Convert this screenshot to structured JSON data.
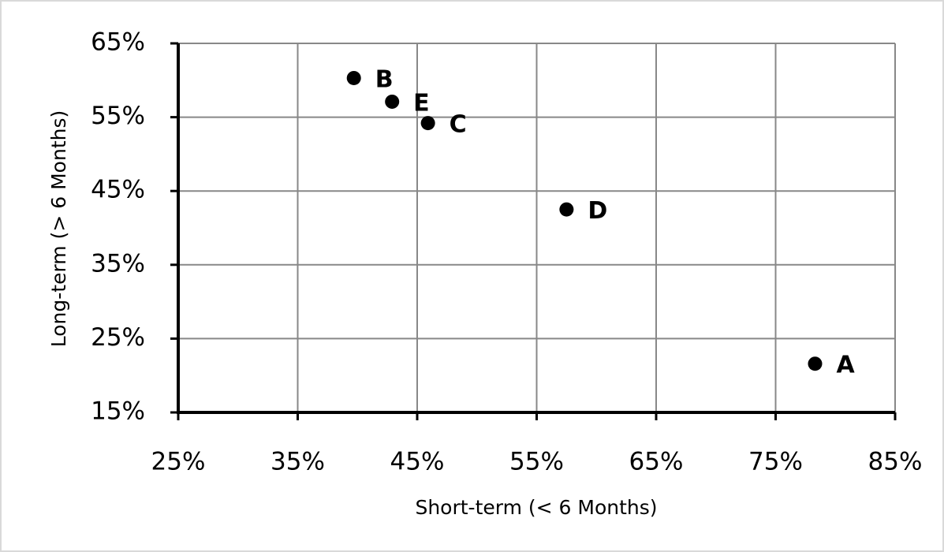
{
  "chart_data": {
    "type": "scatter",
    "xlabel": "Short-term (< 6 Months)",
    "ylabel": "Long-term (> 6 Months)",
    "xlim": [
      25,
      85
    ],
    "ylim": [
      15,
      65
    ],
    "xticks": [
      {
        "value": 25,
        "label": "25%"
      },
      {
        "value": 35,
        "label": "35%"
      },
      {
        "value": 45,
        "label": "45%"
      },
      {
        "value": 55,
        "label": "55%"
      },
      {
        "value": 65,
        "label": "65%"
      },
      {
        "value": 75,
        "label": "75%"
      },
      {
        "value": 85,
        "label": "85%"
      }
    ],
    "yticks": [
      {
        "value": 15,
        "label": "15%"
      },
      {
        "value": 25,
        "label": "25%"
      },
      {
        "value": 35,
        "label": "35%"
      },
      {
        "value": 45,
        "label": "45%"
      },
      {
        "value": 55,
        "label": "55%"
      },
      {
        "value": 65,
        "label": "65%"
      }
    ],
    "grid": true,
    "series": [
      {
        "color": "#000000",
        "labels": [
          "B",
          "E",
          "C",
          "D",
          "A"
        ],
        "x": [
          39.7,
          42.9,
          45.9,
          57.5,
          78.3
        ],
        "values": [
          60.3,
          57.1,
          54.2,
          42.5,
          21.6
        ]
      }
    ]
  }
}
